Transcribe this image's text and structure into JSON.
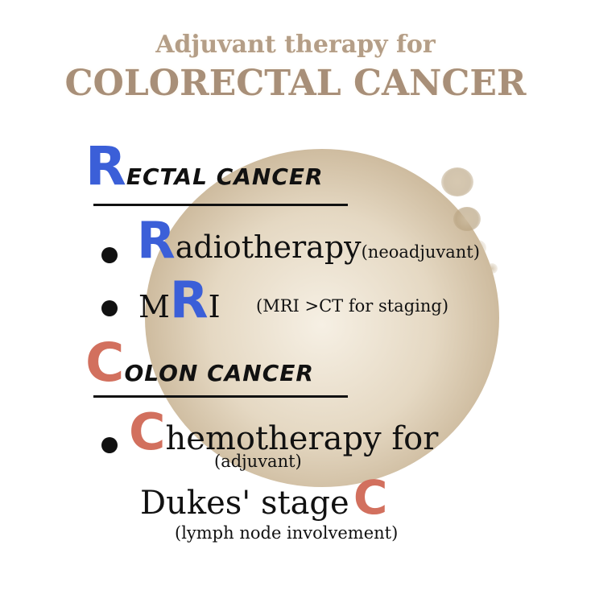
{
  "title": {
    "line1": "Adjuvant therapy for",
    "line2": "COLORECTAL CANCER"
  },
  "rectal": {
    "initial": "R",
    "rest": "ECTAL CANCER",
    "items": [
      {
        "initial": "R",
        "text": "adiotherapy",
        "note": "(neoadjuvant)"
      },
      {
        "prefix": "M",
        "initial": "R",
        "text": "I",
        "note": "(MRI >CT for staging)"
      }
    ]
  },
  "colon": {
    "initial": "C",
    "rest": "OLON CANCER",
    "item": {
      "initial": "C",
      "text": "hemotherapy for",
      "note_above": "(adjuvant)",
      "line2": "Dukes' stage",
      "line2_initial": "C",
      "note_below": "(lymph node involvement)"
    }
  },
  "colors": {
    "rectal_accent": "#3b5fd8",
    "colon_accent": "#d2705e",
    "title": "#a88f78"
  }
}
